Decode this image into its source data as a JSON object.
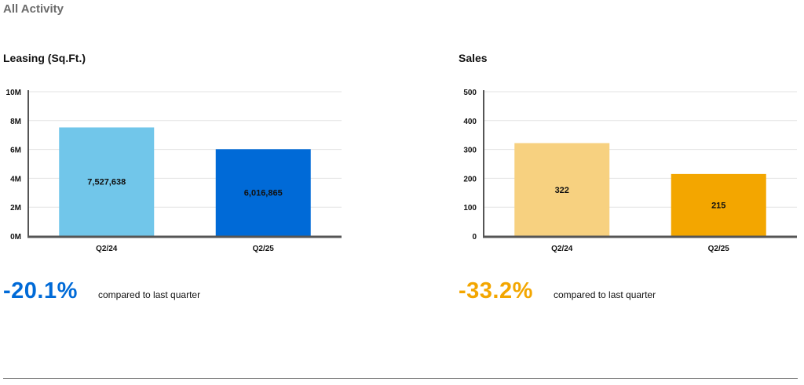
{
  "page": {
    "title": "All Activity"
  },
  "chart_data": [
    {
      "type": "bar",
      "title": "Leasing (Sq.Ft.)",
      "categories": [
        "Q2/24",
        "Q2/25"
      ],
      "values": [
        7527638,
        6016865
      ],
      "value_labels": [
        "7,527,638",
        "6,016,865"
      ],
      "ylim": [
        0,
        10000000
      ],
      "yticks": [
        0,
        2000000,
        4000000,
        6000000,
        8000000,
        10000000
      ],
      "ytick_labels": [
        "0M",
        "2M",
        "4M",
        "6M",
        "8M",
        "10M"
      ],
      "grid": true,
      "colors": [
        "#71c6ea",
        "#006ad7"
      ],
      "change": {
        "value": "-20.1%",
        "text": "compared to last quarter",
        "color": "#006ad7"
      }
    },
    {
      "type": "bar",
      "title": "Sales",
      "categories": [
        "Q2/24",
        "Q2/25"
      ],
      "values": [
        322,
        215
      ],
      "value_labels": [
        "322",
        "215"
      ],
      "ylim": [
        0,
        500
      ],
      "yticks": [
        0,
        100,
        200,
        300,
        400,
        500
      ],
      "ytick_labels": [
        "0",
        "100",
        "200",
        "300",
        "400",
        "500"
      ],
      "grid": true,
      "colors": [
        "#f7d180",
        "#f3a600"
      ],
      "change": {
        "value": "-33.2%",
        "text": "compared to last quarter",
        "color": "#f3a600"
      }
    }
  ]
}
